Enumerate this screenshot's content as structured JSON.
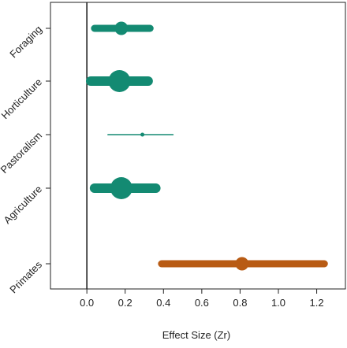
{
  "chart_data": {
    "type": "scatter",
    "title": "",
    "xlabel": "Effect Size (Zr)",
    "ylabel": "",
    "xlim": [
      -0.19,
      1.35
    ],
    "x_ticks": [
      0.0,
      0.2,
      0.4,
      0.6,
      0.8,
      1.0,
      1.2
    ],
    "x_tick_labels": [
      "0.0",
      "0.2",
      "0.4",
      "0.6",
      "0.8",
      "1.0",
      "1.2"
    ],
    "reference_line": 0,
    "grid": false,
    "legend": "none",
    "categories": [
      "Foraging",
      "Horticulture",
      "Pastoralism",
      "Agriculture",
      "Primates"
    ],
    "points": [
      {
        "label": "Foraging",
        "estimate": 0.18,
        "ci_low": 0.04,
        "ci_high": 0.33,
        "weight": "medium",
        "color": "#138a72"
      },
      {
        "label": "Horticulture",
        "estimate": 0.17,
        "ci_low": 0.02,
        "ci_high": 0.32,
        "weight": "large",
        "color": "#138a72"
      },
      {
        "label": "Pastoralism",
        "estimate": 0.29,
        "ci_low": 0.11,
        "ci_high": 0.45,
        "weight": "small",
        "color": "#138a72"
      },
      {
        "label": "Agriculture",
        "estimate": 0.18,
        "ci_low": 0.04,
        "ci_high": 0.36,
        "weight": "large",
        "color": "#138a72"
      },
      {
        "label": "Primates",
        "estimate": 0.81,
        "ci_low": 0.39,
        "ci_high": 1.24,
        "weight": "medium",
        "color": "#b85b14"
      }
    ],
    "colors": {
      "human": "#138a72",
      "primate": "#b85b14",
      "axis": "#222222"
    }
  }
}
